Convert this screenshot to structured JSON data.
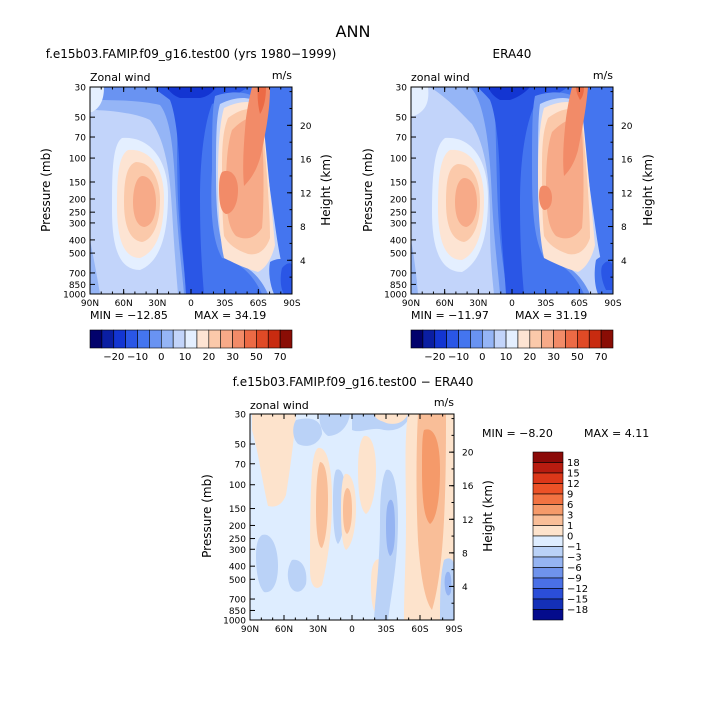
{
  "title": "ANN",
  "zonal_wind_units": "m/s",
  "chart_data": [
    {
      "type": "heatmap",
      "panel": "left",
      "title": "f.e15b03.FAMIP.f09_g16.test00 (yrs 1980−1999)",
      "field_label": "Zonal wind",
      "units": "m/s",
      "xlabel": "",
      "ylabel": "Pressure (mb)",
      "y2label": "Height (km)",
      "x_ticks": [
        "90N",
        "60N",
        "30N",
        "0",
        "30S",
        "60S",
        "90S"
      ],
      "y_ticks": [
        "30",
        "50",
        "70",
        "100",
        "150",
        "200",
        "250",
        "300",
        "400",
        "500",
        "700",
        "850",
        "1000"
      ],
      "y2_ticks": [
        "20",
        "16",
        "12",
        "8",
        "4"
      ],
      "min_text": "MIN = −12.85",
      "max_text": "MAX =   34.19",
      "min": -12.85,
      "max": 34.19,
      "colorbar_labels": [
        "−20",
        "−10",
        "0",
        "10",
        "20",
        "30",
        "50",
        "70"
      ],
      "levels": [
        -30,
        -25,
        -20,
        -15,
        -10,
        -5,
        0,
        5,
        10,
        15,
        20,
        25,
        30,
        40,
        50,
        60,
        70
      ],
      "colors": [
        "#02026c",
        "#0a1ea2",
        "#1335d2",
        "#2a56e6",
        "#4475ef",
        "#6993f2",
        "#95b5f6",
        "#c2d4fa",
        "#e4efff",
        "#fde4d3",
        "#fbc9aa",
        "#f7aa88",
        "#f28b68",
        "#ec6a45",
        "#e04a26",
        "#c82b10",
        "#8a0d05"
      ]
    },
    {
      "type": "heatmap",
      "panel": "right",
      "title": "ERA40",
      "field_label": "zonal wind",
      "units": "m/s",
      "ylabel": "Pressure (mb)",
      "y2label": "Height (km)",
      "x_ticks": [
        "90N",
        "60N",
        "30N",
        "0",
        "30S",
        "60S",
        "90S"
      ],
      "y_ticks": [
        "30",
        "50",
        "70",
        "100",
        "150",
        "200",
        "250",
        "300",
        "400",
        "500",
        "700",
        "850",
        "1000"
      ],
      "y2_ticks": [
        "20",
        "16",
        "12",
        "8",
        "4"
      ],
      "min_text": "MIN = −11.97",
      "max_text": "MAX =   31.19",
      "min": -11.97,
      "max": 31.19,
      "colorbar_labels": [
        "−20",
        "−10",
        "0",
        "10",
        "20",
        "30",
        "50",
        "70"
      ]
    },
    {
      "type": "heatmap",
      "panel": "difference",
      "title": "f.e15b03.FAMIP.f09_g16.test00 − ERA40",
      "field_label": "zonal wind",
      "units": "m/s",
      "ylabel": "Pressure (mb)",
      "y2label": "Height (km)",
      "x_ticks": [
        "90N",
        "60N",
        "30N",
        "0",
        "30S",
        "60S",
        "90S"
      ],
      "y_ticks": [
        "30",
        "50",
        "70",
        "100",
        "150",
        "200",
        "250",
        "300",
        "400",
        "500",
        "700",
        "850",
        "1000"
      ],
      "y2_ticks": [
        "20",
        "16",
        "12",
        "8",
        "4"
      ],
      "min_text": "MIN =   −8.20",
      "max_text": "MAX =    4.11",
      "min": -8.2,
      "max": 4.11,
      "colorbar_labels": [
        "18",
        "15",
        "12",
        "9",
        "6",
        "3",
        "1",
        "0",
        "−1",
        "−3",
        "−6",
        "−9",
        "−12",
        "−15",
        "−18"
      ],
      "colors_top_to_bottom": [
        "#8b0a08",
        "#b81c10",
        "#dc3719",
        "#ec5227",
        "#f27342",
        "#f59a6a",
        "#f9be98",
        "#fde3cc",
        "#deedff",
        "#bad2f7",
        "#95b4f2",
        "#6f93ec",
        "#4a70e6",
        "#2b4ed8",
        "#1430b8",
        "#040b8c"
      ]
    }
  ]
}
